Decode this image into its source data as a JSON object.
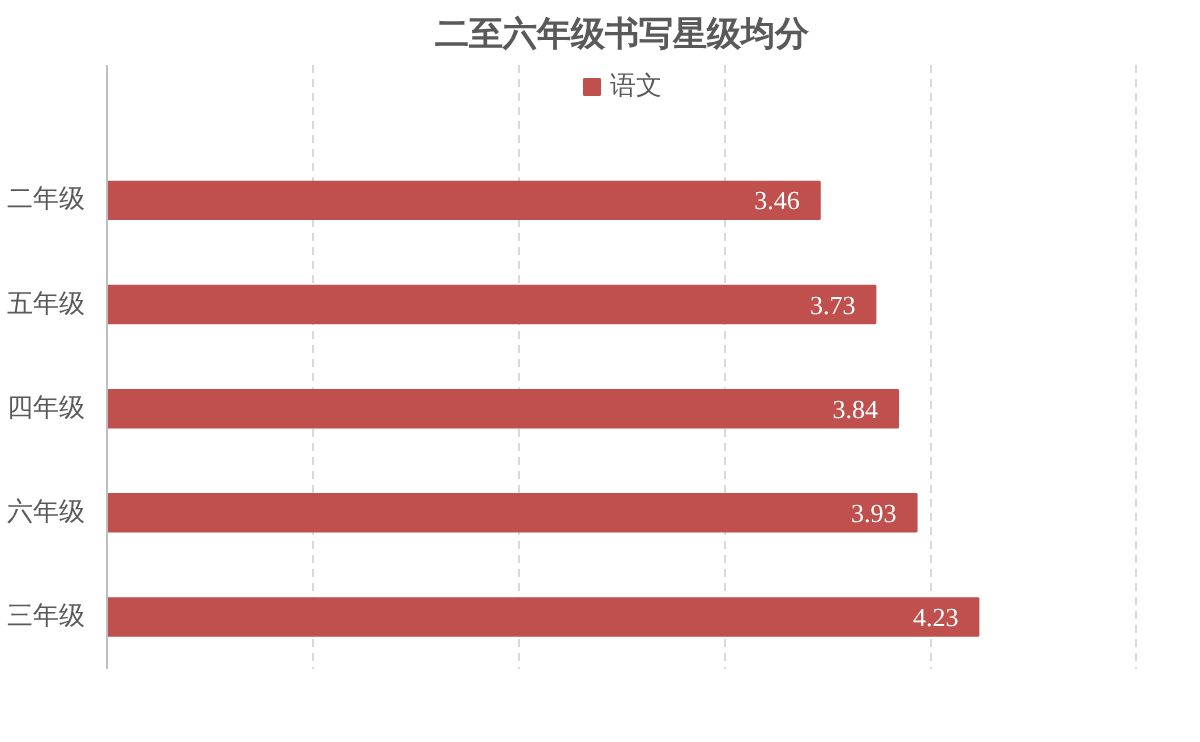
{
  "chart_data": {
    "type": "bar",
    "orientation": "horizontal",
    "title": "二至六年级书写星级均分",
    "categories": [
      "二年级",
      "五年级",
      "四年级",
      "六年级",
      "三年级"
    ],
    "series": [
      {
        "name": "语文",
        "color": "#c0504d",
        "values": [
          3.46,
          3.73,
          3.84,
          3.93,
          4.23
        ]
      }
    ],
    "xlim": [
      0,
      5
    ],
    "xticks": [
      {
        "value": 0,
        "label": null
      },
      {
        "value": 1,
        "label": null
      },
      {
        "value": 2,
        "label": null
      },
      {
        "value": 3,
        "label": null
      },
      {
        "value": 4,
        "label": null
      },
      {
        "value": 5,
        "label": null
      }
    ],
    "tick_labels": "y",
    "grid": "x",
    "legend": "top",
    "data_labels": true
  }
}
